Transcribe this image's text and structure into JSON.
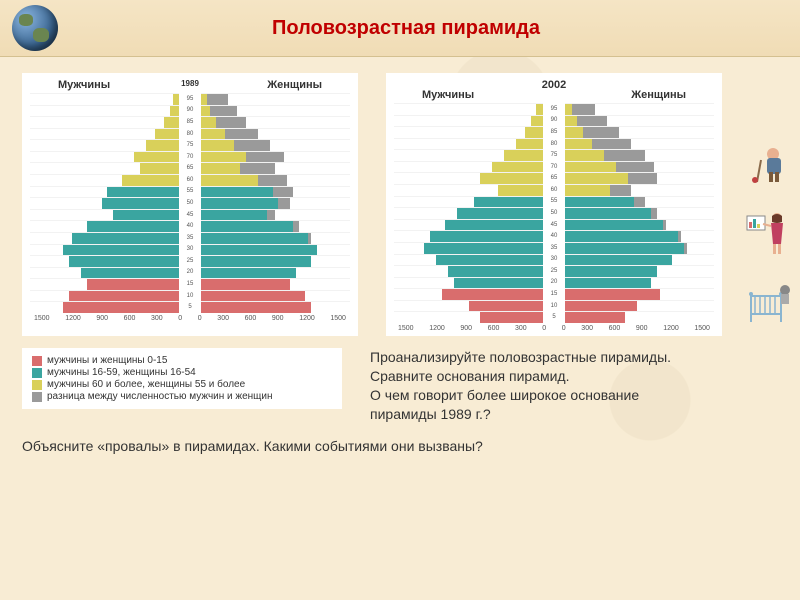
{
  "title": "Половозрастная  пирамида",
  "colors": {
    "children": "#d96d6d",
    "working": "#3aa5a0",
    "elderly": "#d9d05a",
    "surplus": "#9a9a9a",
    "background": "#f8ecd4",
    "chart_bg": "#ffffff",
    "title_color": "#c00000"
  },
  "pyramids": [
    {
      "year": "1989",
      "male_label": "Мужчины",
      "female_label": "Женщины",
      "x_ticks": [
        "1500",
        "1200",
        "900",
        "600",
        "300",
        "0",
        "0",
        "300",
        "600",
        "900",
        "1200",
        "1500"
      ],
      "y_ticks": [
        "95",
        "90",
        "85",
        "80",
        "75",
        "70",
        "65",
        "60",
        "55",
        "50",
        "45",
        "40",
        "35",
        "30",
        "25",
        "20",
        "15",
        "10",
        "5"
      ],
      "bars": [
        {
          "m": 4,
          "f": 18,
          "band": "elderly",
          "sf": 14
        },
        {
          "m": 6,
          "f": 24,
          "band": "elderly",
          "sf": 18
        },
        {
          "m": 10,
          "f": 30,
          "band": "elderly",
          "sf": 20
        },
        {
          "m": 16,
          "f": 38,
          "band": "elderly",
          "sf": 22
        },
        {
          "m": 22,
          "f": 46,
          "band": "elderly",
          "sf": 24
        },
        {
          "m": 30,
          "f": 56,
          "band": "elderly",
          "sf": 26
        },
        {
          "m": 26,
          "f": 50,
          "band": "elderly",
          "sf": 24
        },
        {
          "m": 38,
          "f": 58,
          "band": "elderly",
          "sf": 20
        },
        {
          "m": 48,
          "f": 62,
          "band": "working",
          "sf": 14
        },
        {
          "m": 52,
          "f": 60,
          "band": "working",
          "sf": 8
        },
        {
          "m": 44,
          "f": 50,
          "band": "working",
          "sf": 6
        },
        {
          "m": 62,
          "f": 66,
          "band": "working",
          "sf": 4
        },
        {
          "m": 72,
          "f": 74,
          "band": "working",
          "sf": 2
        },
        {
          "m": 78,
          "f": 78,
          "band": "working",
          "sf": 0
        },
        {
          "m": 74,
          "f": 74,
          "band": "working",
          "sf": 0
        },
        {
          "m": 66,
          "f": 64,
          "band": "working",
          "sf": 0
        },
        {
          "m": 62,
          "f": 60,
          "band": "children",
          "sf": 0
        },
        {
          "m": 74,
          "f": 70,
          "band": "children",
          "sf": 0
        },
        {
          "m": 78,
          "f": 74,
          "band": "children",
          "sf": 0
        }
      ]
    },
    {
      "year": "2002",
      "male_label": "Мужчины",
      "female_label": "Женщины",
      "x_ticks": [
        "1500",
        "1200",
        "900",
        "600",
        "300",
        "0",
        "0",
        "300",
        "600",
        "900",
        "1200",
        "1500"
      ],
      "y_ticks": [
        "95",
        "90",
        "85",
        "80",
        "75",
        "70",
        "65",
        "60",
        "55",
        "50",
        "45",
        "40",
        "35",
        "30",
        "25",
        "20",
        "15",
        "10",
        "5"
      ],
      "bars": [
        {
          "m": 5,
          "f": 20,
          "band": "elderly",
          "sf": 15
        },
        {
          "m": 8,
          "f": 28,
          "band": "elderly",
          "sf": 20
        },
        {
          "m": 12,
          "f": 36,
          "band": "elderly",
          "sf": 24
        },
        {
          "m": 18,
          "f": 44,
          "band": "elderly",
          "sf": 26
        },
        {
          "m": 26,
          "f": 54,
          "band": "elderly",
          "sf": 28
        },
        {
          "m": 34,
          "f": 60,
          "band": "elderly",
          "sf": 26
        },
        {
          "m": 42,
          "f": 62,
          "band": "elderly",
          "sf": 20
        },
        {
          "m": 30,
          "f": 44,
          "band": "elderly",
          "sf": 14
        },
        {
          "m": 46,
          "f": 54,
          "band": "working",
          "sf": 8
        },
        {
          "m": 58,
          "f": 62,
          "band": "working",
          "sf": 4
        },
        {
          "m": 66,
          "f": 68,
          "band": "working",
          "sf": 2
        },
        {
          "m": 76,
          "f": 78,
          "band": "working",
          "sf": 2
        },
        {
          "m": 80,
          "f": 82,
          "band": "working",
          "sf": 2
        },
        {
          "m": 72,
          "f": 72,
          "band": "working",
          "sf": 0
        },
        {
          "m": 64,
          "f": 62,
          "band": "working",
          "sf": 0
        },
        {
          "m": 60,
          "f": 58,
          "band": "working",
          "sf": 0
        },
        {
          "m": 68,
          "f": 64,
          "band": "children",
          "sf": 0
        },
        {
          "m": 50,
          "f": 48,
          "band": "children",
          "sf": 0
        },
        {
          "m": 42,
          "f": 40,
          "band": "children",
          "sf": 0
        }
      ]
    }
  ],
  "legend": [
    {
      "color": "#d96d6d",
      "label": "мужчины и женщины 0-15"
    },
    {
      "color": "#3aa5a0",
      "label": "мужчины 16-59, женщины 16-54"
    },
    {
      "color": "#d9d05a",
      "label": "мужчины 60 и более, женщины 55 и более"
    },
    {
      "color": "#9a9a9a",
      "label": "разница между численностью мужчин и женщин"
    }
  ],
  "analysis_text": {
    "line1": "Проанализируйте  половозрастные  пирамиды.",
    "line2": "Сравните  основания  пирамид.",
    "line3": "О чем  говорит  более  широкое  основание",
    "line4": "пирамиды  1989 г.?"
  },
  "question": "Объясните  «провалы»  в  пирамидах.   Какими  событиями  они  вызваны?",
  "clipart": {
    "man": "elderly-man-icon",
    "woman": "presenter-woman-icon",
    "crib": "baby-crib-icon"
  }
}
